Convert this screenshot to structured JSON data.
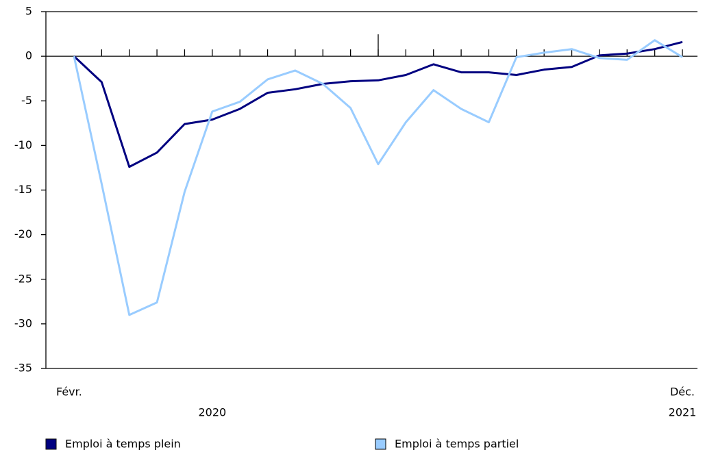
{
  "chart_data": {
    "type": "line",
    "categories": [
      "Févr.",
      null,
      null,
      null,
      null,
      null,
      null,
      null,
      null,
      null,
      null,
      null,
      null,
      null,
      null,
      null,
      null,
      null,
      null,
      null,
      null,
      null,
      "Déc."
    ],
    "year_labels": [
      "2020",
      "2021"
    ],
    "series": [
      {
        "name": "Emploi à temps plein",
        "color": "#000080",
        "values": [
          0,
          -2.9,
          -12.4,
          -10.8,
          -7.6,
          -7.1,
          -5.9,
          -4.1,
          -3.7,
          -3.1,
          -2.8,
          -2.7,
          -2.1,
          -0.9,
          -1.8,
          -1.8,
          -2.1,
          -1.5,
          -1.2,
          0.1,
          0.3,
          0.8,
          1.6
        ]
      },
      {
        "name": "Emploi à temps partiel",
        "color": "#99ccff",
        "values": [
          0,
          -14.3,
          -29.0,
          -27.6,
          -15.2,
          -6.2,
          -5.1,
          -2.6,
          -1.6,
          -3.1,
          -5.8,
          -12.1,
          -7.4,
          -3.8,
          -5.9,
          -7.4,
          -0.1,
          0.4,
          0.8,
          -0.2,
          -0.4,
          1.8,
          -0.1
        ]
      }
    ],
    "ylim": [
      -35,
      5
    ],
    "yticks": [
      5,
      0,
      -5,
      -10,
      -15,
      -20,
      -25,
      -30,
      -35
    ],
    "grid": false
  }
}
